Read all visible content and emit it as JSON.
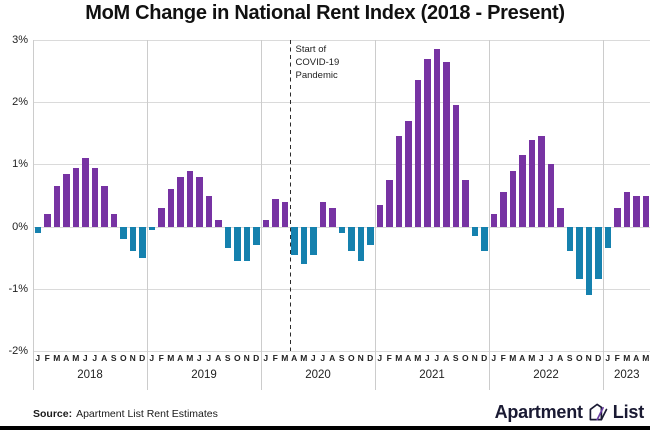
{
  "title": "MoM Change in National Rent Index (2018 - Present)",
  "source": {
    "label": "Source:",
    "text": "Apartment List Rent Estimates"
  },
  "logo": {
    "word1": "Apartment",
    "word2": "List"
  },
  "annotation": {
    "lines": [
      "Start of",
      "COVID-19",
      "Pandemic"
    ]
  },
  "y_axis": {
    "tick_labels": [
      "3%",
      "2%",
      "1%",
      "0%",
      "-1%",
      "-2%"
    ],
    "max_pct": 3,
    "min_pct": -2
  },
  "colors": {
    "positive_bar": "#7733A3",
    "negative_bar": "#1581AE",
    "gridline": "#DADADA",
    "dashed_marker": "#2B2B2B",
    "logo_text": "#1A1A33",
    "logo_accent": "#6C3FA4",
    "bottom_strip": "#000000"
  },
  "chart_data": {
    "type": "bar",
    "title": "MoM Change in National Rent Index (2018 - Present)",
    "unit": "percent month-over-month",
    "ylim": [
      -2,
      3
    ],
    "grid": true,
    "month_letters": [
      "J",
      "F",
      "M",
      "A",
      "M",
      "J",
      "J",
      "A",
      "S",
      "O",
      "N",
      "D"
    ],
    "series": [
      {
        "year": "2018",
        "values": [
          -0.1,
          0.2,
          0.65,
          0.85,
          0.95,
          1.1,
          0.95,
          0.65,
          0.2,
          -0.2,
          -0.4,
          -0.5
        ]
      },
      {
        "year": "2019",
        "values": [
          -0.05,
          0.3,
          0.6,
          0.8,
          0.9,
          0.8,
          0.5,
          0.1,
          -0.35,
          -0.55,
          -0.55,
          -0.3
        ]
      },
      {
        "year": "2020",
        "values": [
          0.1,
          0.45,
          0.4,
          -0.45,
          -0.6,
          -0.45,
          0.4,
          0.3,
          -0.1,
          -0.4,
          -0.55,
          -0.3
        ]
      },
      {
        "year": "2021",
        "values": [
          0.35,
          0.75,
          1.45,
          1.7,
          2.35,
          2.7,
          2.85,
          2.65,
          1.95,
          0.75,
          -0.15,
          -0.4
        ]
      },
      {
        "year": "2022",
        "values": [
          0.2,
          0.55,
          0.9,
          1.15,
          1.4,
          1.45,
          1.0,
          0.3,
          -0.4,
          -0.85,
          -1.1,
          -0.85
        ]
      },
      {
        "year": "2023",
        "values": [
          -0.35,
          0.3,
          0.55,
          0.5,
          0.5
        ]
      }
    ],
    "covid_marker": {
      "year": "2020",
      "month_index": 3,
      "label": "Start of COVID-19 Pandemic"
    },
    "positive_color": "#7733A3",
    "negative_color": "#1581AE"
  }
}
